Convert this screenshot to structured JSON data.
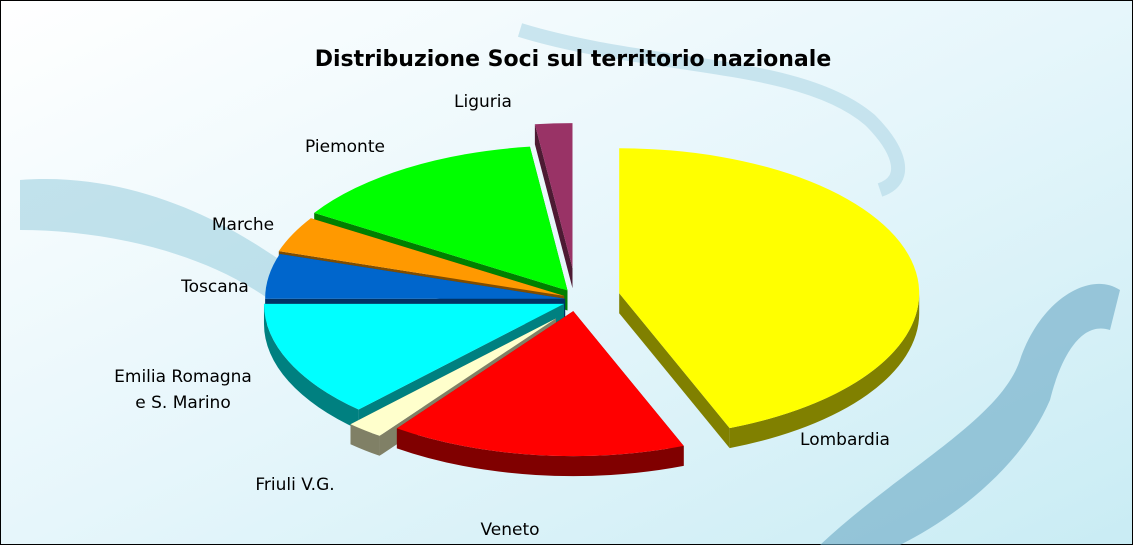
{
  "chart_data": {
    "type": "pie3d",
    "title": "Distribuzione Soci sul territorio nazionale",
    "categories": [
      "Lombardia",
      "Veneto",
      "Friuli V.G.",
      "Emilia Romagna e S. Marino",
      "Toscana",
      "Marche",
      "Piemonte",
      "Liguria"
    ],
    "values": [
      44,
      16,
      2,
      13,
      5,
      4,
      14,
      2
    ],
    "colors": [
      "#ffff00",
      "#ff0000",
      "#ffffcc",
      "#00ffff",
      "#0066cc",
      "#ff9900",
      "#00ff00",
      "#993366"
    ]
  }
}
